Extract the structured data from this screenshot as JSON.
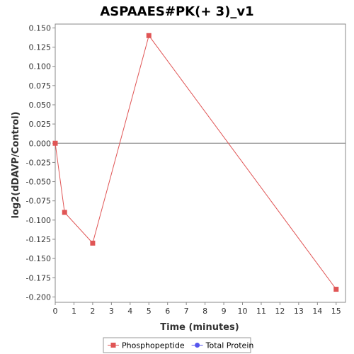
{
  "chart_data": {
    "type": "line",
    "title": "ASPAAES#PK(+ 3)_v1",
    "xlabel": "Time (minutes)",
    "ylabel": "log2(dDAVP/Control)",
    "xlim": [
      0,
      15.5
    ],
    "ylim": [
      -0.207,
      0.155
    ],
    "x_ticks": [
      0,
      1,
      2,
      3,
      4,
      5,
      6,
      7,
      8,
      9,
      10,
      11,
      12,
      13,
      14,
      15
    ],
    "y_ticks": [
      -0.2,
      -0.175,
      -0.15,
      -0.125,
      -0.1,
      -0.075,
      -0.05,
      -0.025,
      0.0,
      0.025,
      0.05,
      0.075,
      0.1,
      0.125,
      0.15
    ],
    "y_tick_labels": [
      "-0.200",
      "-0.175",
      "-0.150",
      "-0.125",
      "-0.100",
      "-0.075",
      "-0.050",
      "-0.025",
      "0.000",
      "0.025",
      "0.050",
      "0.075",
      "0.100",
      "0.125",
      "0.150"
    ],
    "grid": false,
    "zero_line": true,
    "legend_position": "bottom",
    "series": [
      {
        "name": "Phosphopeptide",
        "color": "#e05555",
        "marker": "square",
        "x": [
          0,
          0.5,
          2,
          5,
          15
        ],
        "y": [
          0.0,
          -0.09,
          -0.13,
          0.14,
          -0.19
        ]
      },
      {
        "name": "Total Protein",
        "color": "#5555ee",
        "marker": "circle",
        "x": [],
        "y": []
      }
    ]
  }
}
